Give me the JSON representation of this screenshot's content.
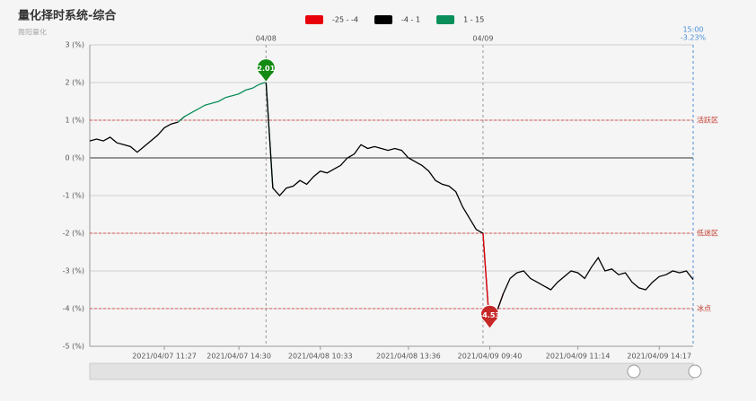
{
  "chart_data": {
    "type": "line",
    "title": "量化择时系统-综合",
    "subtitle": "舞阳量化",
    "categories": [
      null,
      null,
      null,
      null,
      null,
      null,
      null,
      null,
      null,
      null,
      null,
      "2021/04/07 11:27",
      null,
      null,
      null,
      null,
      null,
      null,
      null,
      null,
      null,
      null,
      "2021/04/07 14:30",
      null,
      null,
      null,
      null,
      null,
      null,
      null,
      null,
      null,
      null,
      null,
      "2021/04/08 10:33",
      null,
      null,
      null,
      null,
      null,
      null,
      null,
      null,
      null,
      null,
      null,
      null,
      "2021/04/08 13:36",
      null,
      null,
      null,
      null,
      null,
      null,
      null,
      null,
      null,
      null,
      null,
      "2021/04/09 09:40",
      null,
      null,
      null,
      null,
      null,
      null,
      null,
      null,
      null,
      null,
      null,
      null,
      "2021/04/09 11:14",
      null,
      null,
      null,
      null,
      null,
      null,
      null,
      null,
      null,
      null,
      null,
      "2021/04/09 14:17",
      null,
      null,
      null,
      null,
      null
    ],
    "series": [
      {
        "values": [
          0.45,
          0.5,
          0.45,
          0.55,
          0.4,
          0.35,
          0.3,
          0.15,
          0.3,
          0.45,
          0.6,
          0.8,
          0.9,
          0.95,
          1.1,
          1.2,
          1.3,
          1.4,
          1.45,
          1.5,
          1.6,
          1.65,
          1.7,
          1.8,
          1.85,
          1.95,
          2.01,
          -0.8,
          -1.0,
          -0.8,
          -0.75,
          -0.6,
          -0.7,
          -0.5,
          -0.35,
          -0.4,
          -0.3,
          -0.2,
          0.0,
          0.1,
          0.35,
          0.25,
          0.3,
          0.25,
          0.2,
          0.25,
          0.2,
          0.0,
          -0.1,
          -0.2,
          -0.35,
          -0.6,
          -0.7,
          -0.75,
          -0.9,
          -1.3,
          -1.6,
          -1.9,
          -2.0,
          -4.53,
          -4.1,
          -3.6,
          -3.2,
          -3.05,
          -3.0,
          -3.2,
          -3.3,
          -3.4,
          -3.5,
          -3.3,
          -3.15,
          -3.0,
          -3.05,
          -3.2,
          -2.9,
          -2.65,
          -3.0,
          -2.95,
          -3.1,
          -3.05,
          -3.3,
          -3.45,
          -3.5,
          -3.3,
          -3.15,
          -3.1,
          -3.0,
          -3.05,
          -3.0,
          -3.23
        ]
      }
    ],
    "bands": [
      {
        "name": "-25 - -4",
        "color": "#e8000b",
        "min": -25,
        "max": -4
      },
      {
        "name": "-4 - 1",
        "color": "#000000",
        "min": -4,
        "max": 1
      },
      {
        "name": "1 - 15",
        "color": "#0a8f5a",
        "min": 1,
        "max": 15
      }
    ],
    "ylim": [
      -5,
      3
    ],
    "yticks": [
      {
        "value": -5,
        "label": "-5 (%)"
      },
      {
        "value": -4,
        "label": "-4 (%)"
      },
      {
        "value": -3,
        "label": "-3 (%)"
      },
      {
        "value": -2,
        "label": "-2 (%)"
      },
      {
        "value": -1,
        "label": "-1 (%)"
      },
      {
        "value": 0,
        "label": "0 (%)"
      },
      {
        "value": 1,
        "label": "1 (%)"
      },
      {
        "value": 2,
        "label": "2 (%)"
      },
      {
        "value": 3,
        "label": "3 (%)"
      }
    ],
    "grid": true,
    "hlines": [
      {
        "value": 1,
        "label": "活跃区"
      },
      {
        "value": -2,
        "label": "低迷区"
      },
      {
        "value": -4,
        "label": "冰点"
      }
    ],
    "vlines": [
      {
        "at": 26,
        "label": "04/08"
      },
      {
        "at": 58,
        "label": "04/09"
      },
      {
        "at": 89,
        "label": "15:00",
        "sublabel": "-3.23%"
      }
    ],
    "pins": [
      {
        "at": 26,
        "label": "2.01",
        "color": "#138a13"
      },
      {
        "at": 59,
        "label": "-4.53",
        "color": "#c62828"
      }
    ]
  }
}
